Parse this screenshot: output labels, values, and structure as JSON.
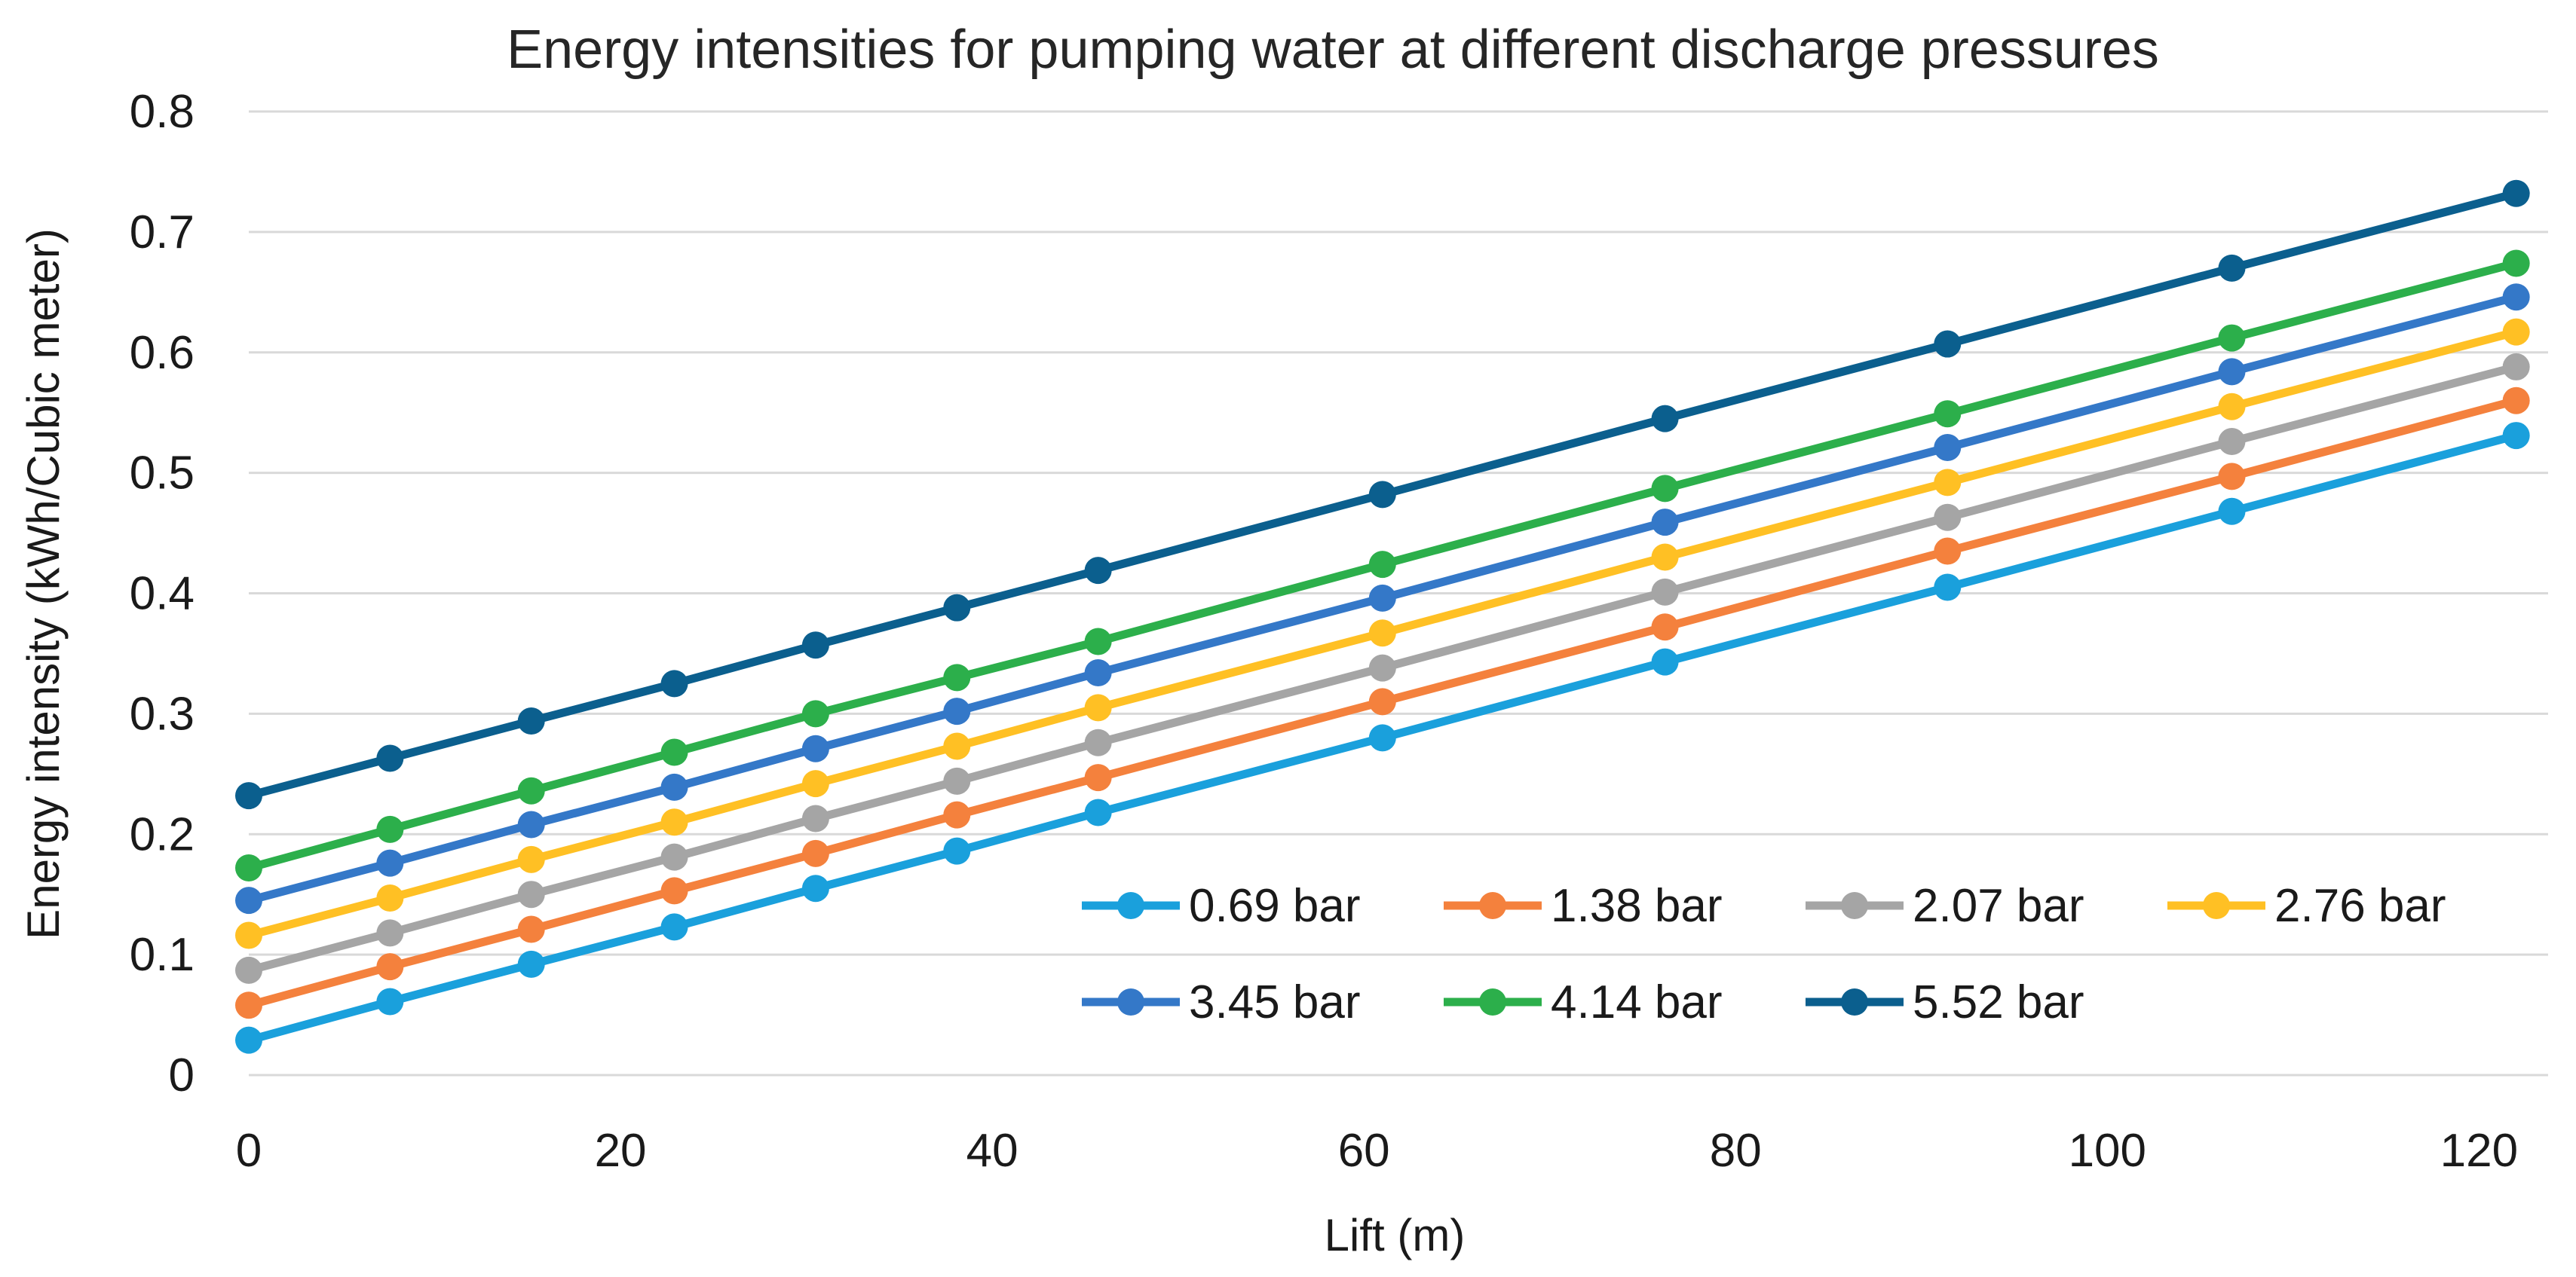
{
  "chart_data": {
    "type": "line",
    "title": "Energy intensities for pumping water at different discharge pressures",
    "xlabel": "Lift (m)",
    "ylabel": "Energy intensity (kWh/Cubic meter)",
    "xlim": [
      0,
      120
    ],
    "ylim": [
      0,
      0.8
    ],
    "xticks": [
      "0",
      "20",
      "40",
      "60",
      "80",
      "100",
      "120"
    ],
    "yticks": [
      "0",
      "0.1",
      "0.2",
      "0.3",
      "0.4",
      "0.5",
      "0.6",
      "0.7",
      "0.8"
    ],
    "grid": "horizontal",
    "legend_position": "bottom-right inside",
    "x": [
      0,
      7.6,
      15.2,
      22.9,
      30.5,
      38.1,
      45.7,
      61,
      76.2,
      91.4,
      106.7,
      122
    ],
    "series": [
      {
        "name": "0.69 bar",
        "color": "#1AA0DC",
        "values": [
          0.029,
          0.061,
          0.092,
          0.123,
          0.155,
          0.186,
          0.218,
          0.28,
          0.343,
          0.405,
          0.468,
          0.531
        ]
      },
      {
        "name": "1.38 bar",
        "color": "#F4813D",
        "values": [
          0.058,
          0.09,
          0.121,
          0.153,
          0.184,
          0.216,
          0.247,
          0.31,
          0.372,
          0.435,
          0.497,
          0.56
        ]
      },
      {
        "name": "2.07 bar",
        "color": "#A5A5A5",
        "values": [
          0.087,
          0.118,
          0.15,
          0.181,
          0.213,
          0.244,
          0.276,
          0.338,
          0.401,
          0.463,
          0.526,
          0.588
        ]
      },
      {
        "name": "2.76 bar",
        "color": "#FFC024",
        "values": [
          0.116,
          0.147,
          0.179,
          0.21,
          0.242,
          0.273,
          0.305,
          0.367,
          0.43,
          0.492,
          0.555,
          0.617
        ]
      },
      {
        "name": "3.45 bar",
        "color": "#3478C8",
        "values": [
          0.145,
          0.176,
          0.208,
          0.239,
          0.271,
          0.302,
          0.334,
          0.396,
          0.459,
          0.521,
          0.584,
          0.646
        ]
      },
      {
        "name": "4.14 bar",
        "color": "#2CAF4B",
        "values": [
          0.172,
          0.204,
          0.236,
          0.268,
          0.3,
          0.33,
          0.36,
          0.424,
          0.487,
          0.549,
          0.612,
          0.674
        ]
      },
      {
        "name": "5.52 bar",
        "color": "#0B5F8E",
        "values": [
          0.232,
          0.263,
          0.294,
          0.325,
          0.357,
          0.388,
          0.419,
          0.482,
          0.545,
          0.607,
          0.67,
          0.732
        ]
      }
    ]
  }
}
